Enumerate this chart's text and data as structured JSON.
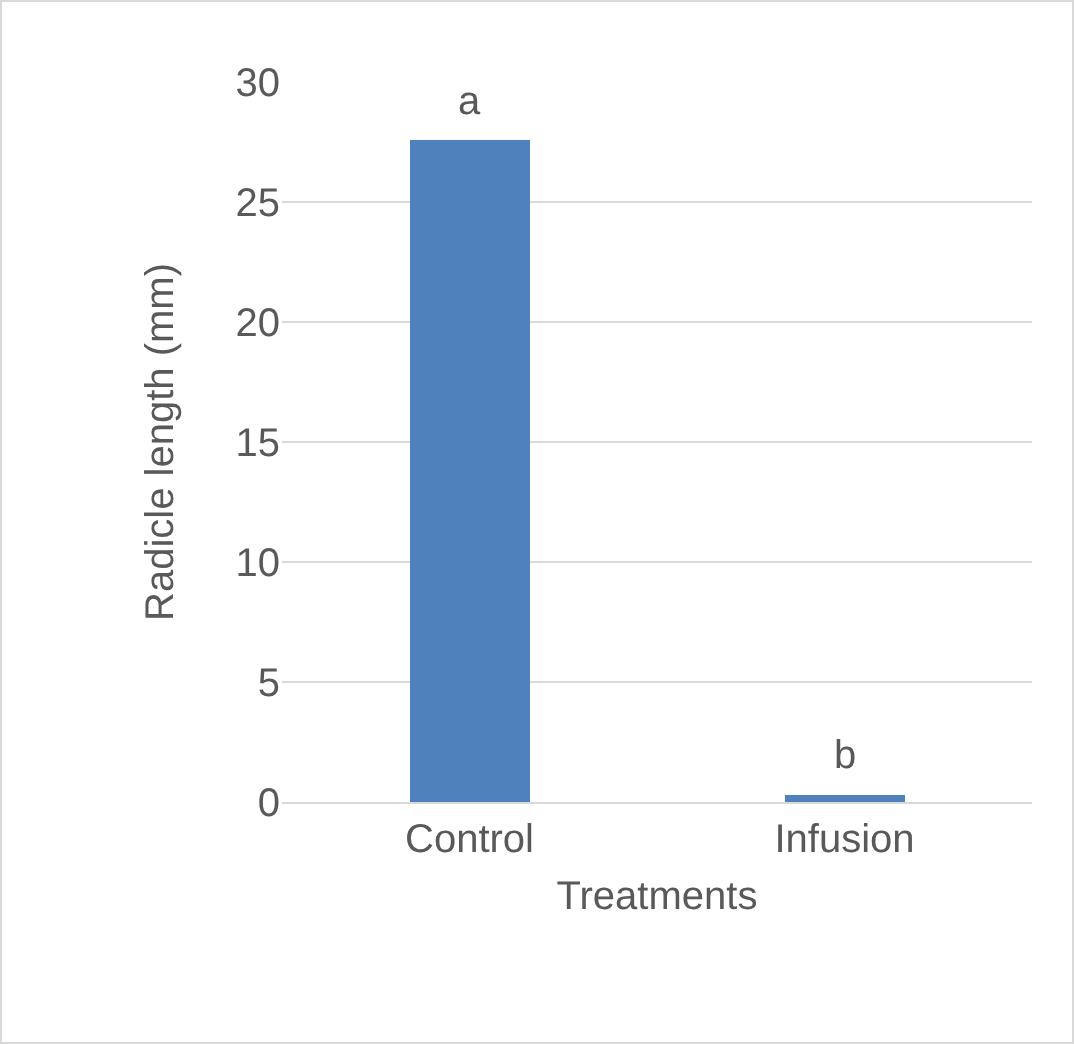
{
  "chart_data": {
    "type": "bar",
    "xlabel": "Treatments",
    "ylabel": "Radicle length (mm)",
    "categories": [
      "Control",
      "Infusion"
    ],
    "values": [
      27.6,
      0.3
    ],
    "color": "#4f81bd",
    "ylim": [
      0,
      30
    ],
    "yticks": [
      0,
      5,
      10,
      15,
      20,
      25,
      30
    ],
    "grid": "y",
    "annotations": [
      {
        "text": "a",
        "x": "Control",
        "y": 27.6
      },
      {
        "text": "b",
        "x": "Infusion",
        "y": 0.3
      }
    ]
  }
}
